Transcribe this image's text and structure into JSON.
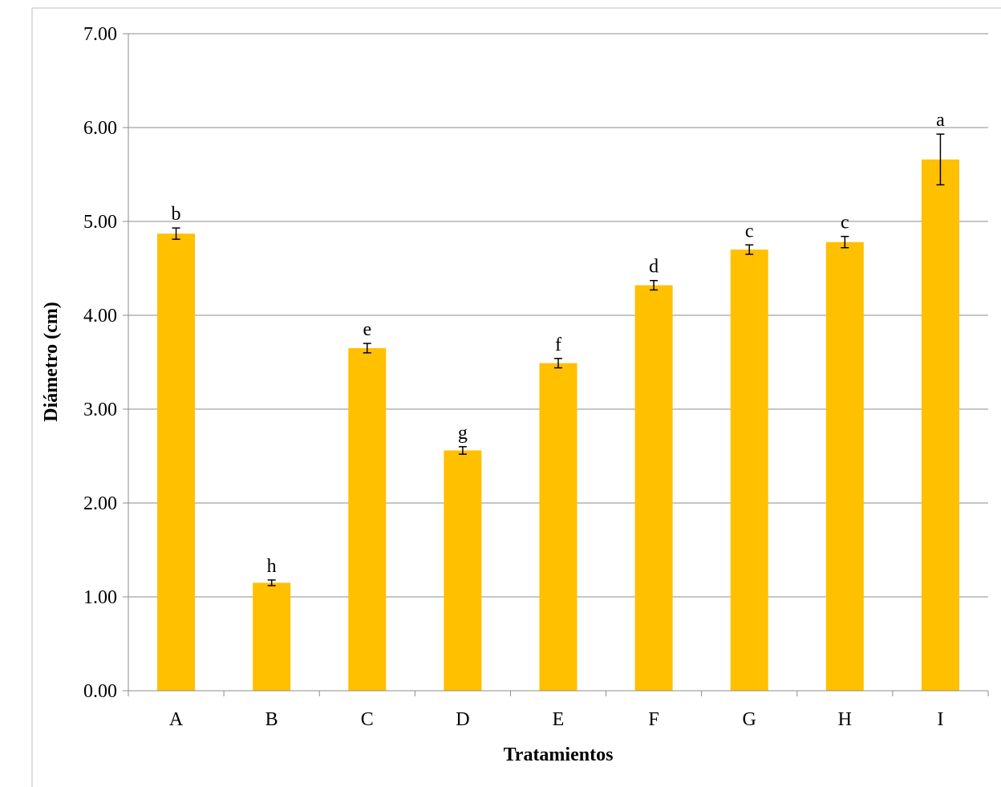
{
  "chart_data": {
    "type": "bar",
    "title": "",
    "xlabel": "Tratamientos",
    "ylabel": "Diámetro (cm)",
    "ylim": [
      0,
      7
    ],
    "yticks": [
      "0.00",
      "1.00",
      "2.00",
      "3.00",
      "4.00",
      "5.00",
      "6.00",
      "7.00"
    ],
    "grid": true,
    "legend": "none",
    "bar_color": "#FFC000",
    "categories": [
      "A",
      "B",
      "C",
      "D",
      "E",
      "F",
      "G",
      "H",
      "I"
    ],
    "values": [
      4.87,
      1.15,
      3.65,
      2.56,
      3.49,
      4.32,
      4.7,
      4.78,
      5.66
    ],
    "errors": [
      0.06,
      0.03,
      0.05,
      0.04,
      0.05,
      0.05,
      0.05,
      0.06,
      0.27
    ],
    "labels": [
      "b",
      "h",
      "e",
      "g",
      "f",
      "d",
      "c",
      "c",
      "a"
    ]
  }
}
